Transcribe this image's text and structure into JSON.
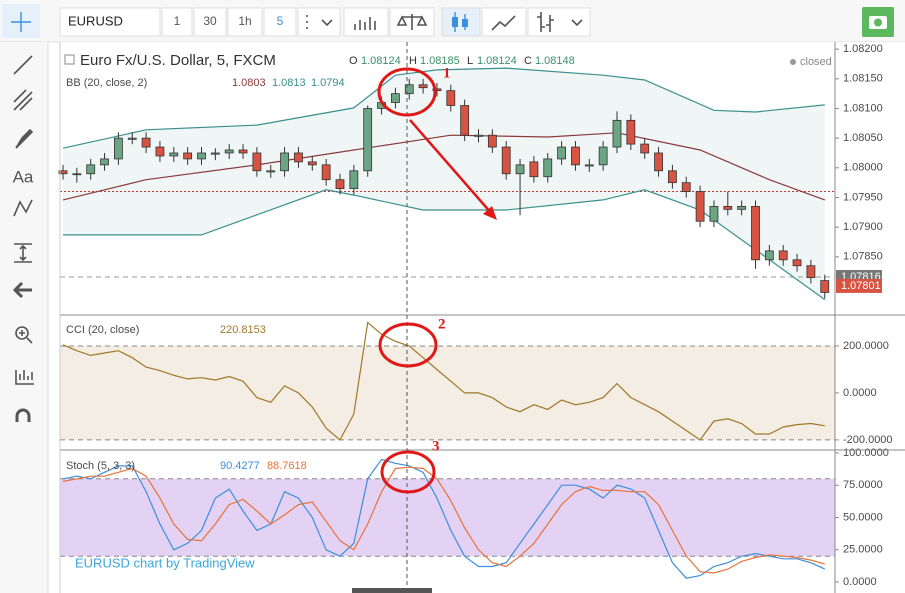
{
  "toolbar": {
    "symbol": "EURUSD",
    "intervals": [
      "1",
      "30",
      "1h",
      "5"
    ]
  },
  "watermark": "EURUSD chart by TradingView",
  "annotations": [
    "1",
    "2",
    "3"
  ],
  "chart_data": [
    {
      "type": "candlestick",
      "title": "Euro Fx/U.S. Dollar, 5, FXCM",
      "ohlc": [
        "O",
        "1.08124",
        "H",
        "1.08185",
        "L",
        "1.08124",
        "C",
        "1.08148"
      ],
      "status": "closed",
      "indicator": {
        "name": "BB (20, close, 2)",
        "values": [
          "1.0803",
          "1.0813",
          "1.0794"
        ]
      },
      "up_color": "#6ba583",
      "down_color": "#d75442",
      "open": [
        1.07995,
        1.0799,
        1.0799,
        1.08005,
        1.08015,
        1.08048,
        1.0805,
        1.08035,
        1.0802,
        1.08025,
        1.08015,
        1.08023,
        1.08025,
        1.0803,
        1.08025,
        1.07993,
        1.07995,
        1.08025,
        1.0801,
        1.08005,
        1.0798,
        1.07965,
        1.07995,
        1.081,
        1.0811,
        1.08125,
        1.0814,
        1.08133,
        1.0813,
        1.08105,
        1.08053,
        1.08055,
        1.08035,
        1.0799,
        1.0801,
        1.07985,
        1.08015,
        1.08035,
        1.08003,
        1.08005,
        1.08035,
        1.0808,
        1.0804,
        1.08025,
        1.07995,
        1.07975,
        1.0796,
        1.0791,
        1.07935,
        1.0793,
        1.07935,
        1.07845,
        1.0786,
        1.07845,
        1.07835,
        1.0781
      ],
      "high": [
        1.08005,
        1.08,
        1.08015,
        1.08025,
        1.0806,
        1.0806,
        1.0806,
        1.08045,
        1.08035,
        1.08035,
        1.08035,
        1.08033,
        1.0804,
        1.0804,
        1.08035,
        1.08005,
        1.08035,
        1.08035,
        1.0802,
        1.08015,
        1.0799,
        1.08005,
        1.08105,
        1.0812,
        1.08135,
        1.0815,
        1.0815,
        1.08143,
        1.0814,
        1.08115,
        1.08065,
        1.08065,
        1.08045,
        1.08015,
        1.0802,
        1.08025,
        1.08045,
        1.08045,
        1.08015,
        1.08045,
        1.08095,
        1.0809,
        1.0805,
        1.08035,
        1.08005,
        1.07985,
        1.0797,
        1.07945,
        1.0796,
        1.07945,
        1.07945,
        1.0787,
        1.0787,
        1.07855,
        1.07845,
        1.0782
      ],
      "low": [
        1.0798,
        1.07975,
        1.0798,
        1.07995,
        1.08005,
        1.0804,
        1.08025,
        1.0801,
        1.0801,
        1.08005,
        1.08005,
        1.08013,
        1.08015,
        1.08015,
        1.07985,
        1.07983,
        1.07985,
        1.08,
        1.07995,
        1.0797,
        1.07955,
        1.07955,
        1.07985,
        1.0809,
        1.081,
        1.08115,
        1.08125,
        1.0812,
        1.08095,
        1.08045,
        1.08043,
        1.08025,
        1.0798,
        1.0792,
        1.07975,
        1.07975,
        1.08005,
        1.07995,
        1.07993,
        1.07995,
        1.08025,
        1.0803,
        1.08015,
        1.07985,
        1.07965,
        1.0795,
        1.079,
        1.079,
        1.0792,
        1.0792,
        1.0783,
        1.07835,
        1.07835,
        1.07825,
        1.07805,
        1.0778
      ],
      "close": [
        1.0799,
        1.0799,
        1.08005,
        1.08015,
        1.0805,
        1.0805,
        1.08035,
        1.0802,
        1.08025,
        1.08015,
        1.08025,
        1.08025,
        1.0803,
        1.08025,
        1.07995,
        1.07995,
        1.08025,
        1.0801,
        1.08005,
        1.0798,
        1.07965,
        1.07995,
        1.081,
        1.0811,
        1.08125,
        1.0814,
        1.08135,
        1.0813,
        1.08105,
        1.08055,
        1.08055,
        1.08035,
        1.0799,
        1.08005,
        1.07985,
        1.08015,
        1.08035,
        1.08005,
        1.08005,
        1.08035,
        1.0808,
        1.0804,
        1.08025,
        1.07995,
        1.07975,
        1.0796,
        1.0791,
        1.07935,
        1.0793,
        1.07935,
        1.07845,
        1.0786,
        1.07845,
        1.07835,
        1.07815,
        1.0779
      ],
      "series": [
        {
          "color": "#3a8f8f",
          "x": [
            0,
            6,
            14,
            21,
            24,
            27,
            32,
            39,
            42,
            47,
            50,
            55
          ],
          "values": [
            1.08033,
            1.08064,
            1.08072,
            1.08101,
            1.08156,
            1.08165,
            1.08168,
            1.08156,
            1.08148,
            1.08097,
            1.08094,
            1.08106
          ]
        },
        {
          "color": "#8b3a3a",
          "x": [
            0,
            6,
            14,
            21,
            28,
            35,
            40,
            46,
            51,
            55
          ],
          "values": [
            1.07946,
            1.0798,
            1.08005,
            1.0803,
            1.08055,
            1.08052,
            1.08059,
            1.0803,
            1.0798,
            1.07946
          ]
        },
        {
          "color": "#3a8f8f",
          "x": [
            0,
            3,
            10,
            19,
            21,
            26,
            32,
            39,
            42,
            46,
            50,
            55
          ],
          "values": [
            1.07887,
            1.07887,
            1.07887,
            1.07963,
            1.07954,
            1.07929,
            1.07929,
            1.07946,
            1.07963,
            1.07929,
            1.07862,
            1.07778
          ]
        }
      ],
      "reference_lines": [
        {
          "value": 1.0796,
          "color": "#c0392b"
        },
        {
          "value": 1.07816,
          "color": "#999999"
        }
      ],
      "price_labels": [
        {
          "value": 1.07816,
          "color": "#777777"
        },
        {
          "value": 1.07801,
          "color": "#d75442"
        }
      ],
      "ylim": [
        1.07752,
        1.08212
      ],
      "yticks": [
        {
          "value": 1.0785,
          "label": "1.07850"
        },
        {
          "value": 1.079,
          "label": "1.07900"
        },
        {
          "value": 1.0795,
          "label": "1.07950"
        },
        {
          "value": 1.08,
          "label": "1.08000"
        },
        {
          "value": 1.0805,
          "label": "1.08050"
        },
        {
          "value": 1.081,
          "label": "1.08100"
        },
        {
          "value": 1.0815,
          "label": "1.08150"
        },
        {
          "value": 1.082,
          "label": "1.08200"
        }
      ]
    },
    {
      "type": "line",
      "title": "CCI (20, close)",
      "header_values": [
        "220.8153"
      ],
      "band": [
        -200,
        200
      ],
      "band_color": "#f3ede3",
      "series": [
        {
          "color": "#a0782a",
          "values": [
            205,
            180,
            160,
            170,
            180,
            150,
            110,
            95,
            75,
            60,
            65,
            55,
            70,
            50,
            -20,
            -40,
            30,
            0,
            -60,
            -150,
            -200,
            -90,
            300,
            250,
            220,
            200,
            150,
            100,
            50,
            0,
            0,
            -20,
            -60,
            -80,
            -50,
            -70,
            -30,
            -50,
            -40,
            -20,
            40,
            -20,
            -50,
            -80,
            -120,
            -160,
            -200,
            -120,
            -110,
            -130,
            -175,
            -175,
            -145,
            -135,
            -130,
            -140
          ]
        }
      ],
      "ylim": [
        -243,
        332
      ],
      "yticks": [
        {
          "value": -200,
          "label": "-200.0000"
        },
        {
          "value": 0,
          "label": "0.0000"
        },
        {
          "value": 200,
          "label": "200.0000"
        }
      ]
    },
    {
      "type": "line",
      "title": "Stoch (5, 3, 3)",
      "header_values": [
        "90.4277",
        "88.7618"
      ],
      "band": [
        20,
        80
      ],
      "band_color": "#e3d2f4",
      "series": [
        {
          "color": "#3c8fdc",
          "values": [
            80,
            82,
            80,
            85,
            90,
            90,
            70,
            45,
            25,
            30,
            40,
            65,
            72,
            55,
            40,
            45,
            70,
            65,
            50,
            25,
            20,
            30,
            80,
            95,
            92,
            90,
            85,
            65,
            40,
            20,
            12,
            12,
            15,
            30,
            45,
            60,
            75,
            75,
            72,
            65,
            75,
            72,
            65,
            40,
            15,
            3,
            5,
            12,
            15,
            20,
            22,
            20,
            18,
            18,
            15,
            10
          ]
        },
        {
          "color": "#e8733a",
          "values": [
            78,
            80,
            82,
            82,
            85,
            88,
            82,
            65,
            45,
            33,
            32,
            45,
            60,
            64,
            55,
            45,
            52,
            60,
            62,
            47,
            32,
            25,
            45,
            70,
            88,
            89,
            88,
            80,
            63,
            42,
            25,
            15,
            12,
            20,
            30,
            45,
            60,
            70,
            74,
            71,
            71,
            70,
            70,
            60,
            40,
            20,
            8,
            7,
            10,
            16,
            19,
            21,
            20,
            19,
            17,
            14
          ]
        }
      ],
      "ylim": [
        -8.5,
        102.3
      ],
      "yticks": [
        {
          "value": 0,
          "label": "0.0000"
        },
        {
          "value": 25,
          "label": "25.0000"
        },
        {
          "value": 50,
          "label": "50.0000"
        },
        {
          "value": 75,
          "label": "75.0000"
        },
        {
          "value": 100,
          "label": "100.0000"
        }
      ]
    }
  ]
}
